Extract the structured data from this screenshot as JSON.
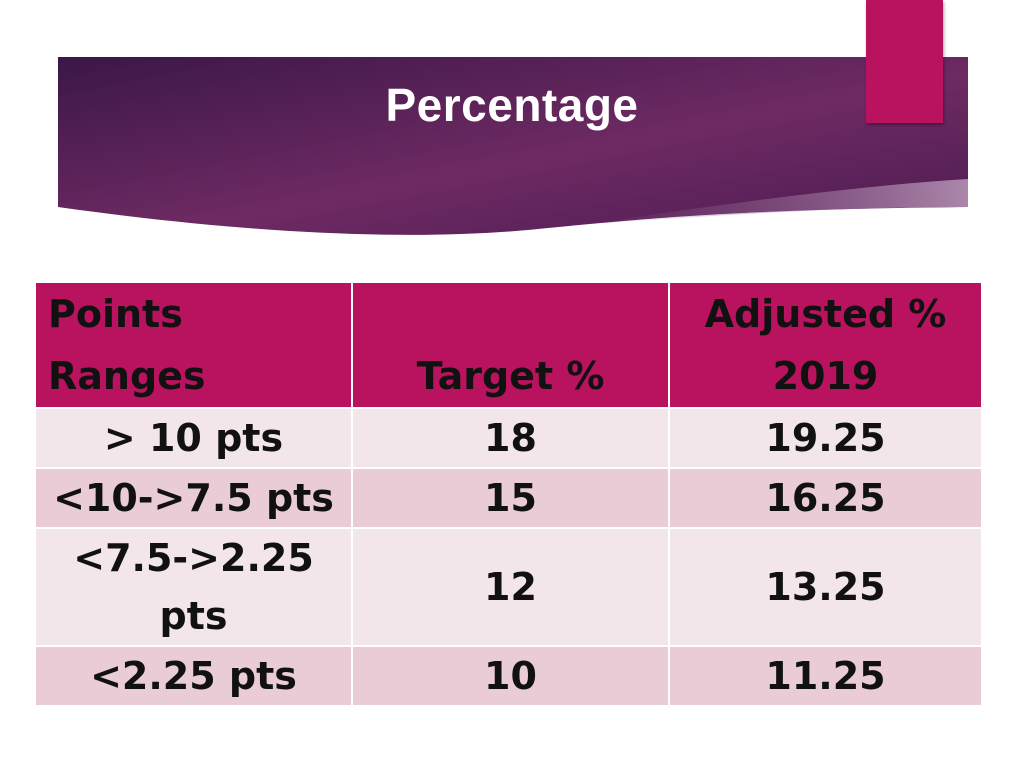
{
  "slide": {
    "title": "Percentage",
    "colors": {
      "banner_start": "#3b1747",
      "banner_end": "#6e2a63",
      "accent": "#b9125f"
    }
  },
  "table": {
    "headers": {
      "points": "Points Ranges",
      "target": "Target %",
      "adjusted_line1": "Adjusted %",
      "adjusted_line2": "2019"
    },
    "rows": [
      {
        "range": "> 10 pts",
        "target": "18",
        "adjusted": "19.25"
      },
      {
        "range": "<10->7.5 pts",
        "target": "15",
        "adjusted": "16.25"
      },
      {
        "range": "<7.5->2.25 pts",
        "target": "12",
        "adjusted": "13.25"
      },
      {
        "range": "<2.25 pts",
        "target": "10",
        "adjusted": "11.25"
      }
    ]
  }
}
